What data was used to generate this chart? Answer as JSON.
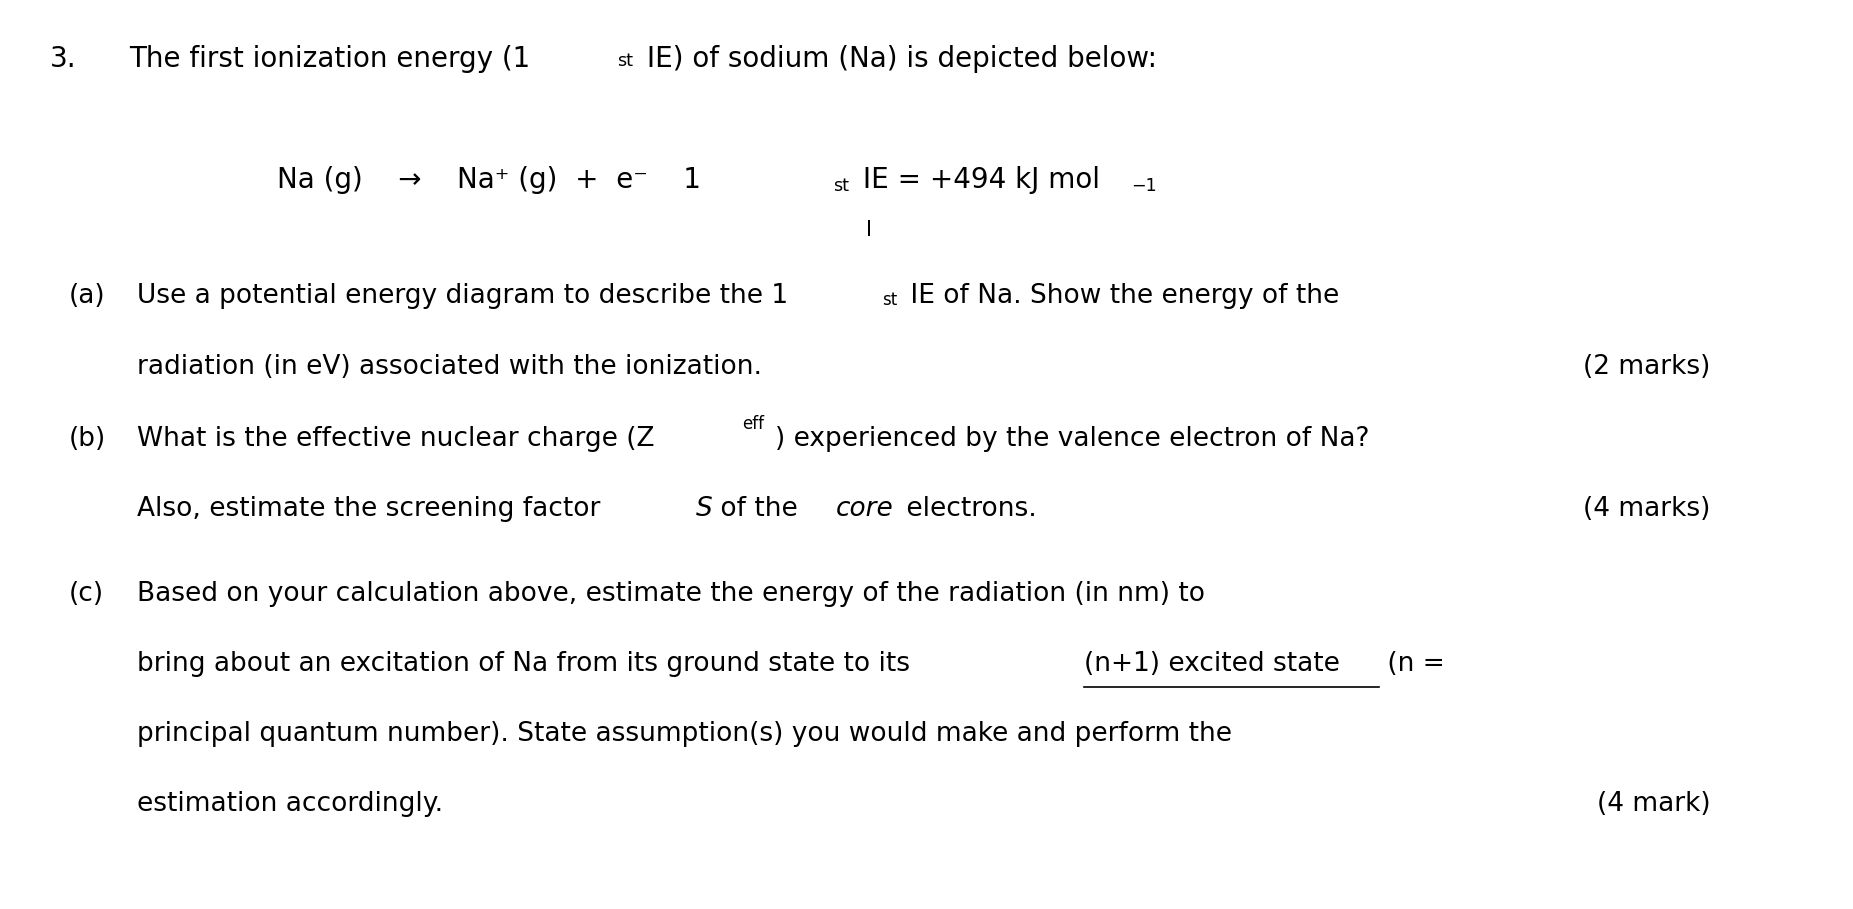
{
  "background_color": "#ffffff",
  "fig_width": 18.53,
  "fig_height": 9.09,
  "question_number": "3.",
  "title_seg1": "The first ionization energy (1",
  "title_st": "st",
  "title_seg2": " IE) of sodium (Na) is depicted below:",
  "eq_seg1": "Na (g)    →    Na⁺ (g)  +  e⁻    1",
  "eq_st": "st",
  "eq_seg2": " IE = +494 kJ mol",
  "eq_sup": "−1",
  "eq_cursor": "I",
  "part_a_label": "(a)",
  "part_a_seg1": "Use a potential energy diagram to describe the 1",
  "part_a_st": "st",
  "part_a_seg2": " IE of Na. Show the energy of the",
  "part_a_line2": "radiation (in eV) associated with the ionization.",
  "part_a_marks": "(2 marks)",
  "part_b_label": "(b)",
  "part_b_seg1": "What is the effective nuclear charge (Z",
  "part_b_eff": "eff",
  "part_b_seg2": ") experienced by the valence electron of Na?",
  "part_b_line2a": "Also, estimate the screening factor ",
  "part_b_S": "S",
  "part_b_line2b": " of the ",
  "part_b_core": "core",
  "part_b_line2c": " electrons.",
  "part_b_marks": "(4 marks)",
  "part_c_label": "(c)",
  "part_c_line1": "Based on your calculation above, estimate the energy of the radiation (in nm) to",
  "part_c_line2a": "bring about an excitation of Na from its ground state to its ",
  "part_c_underline": "(n+1) excited state",
  "part_c_line2b": " (n =",
  "part_c_line3": "principal quantum number). State assumption(s) you would make and perform the",
  "part_c_line4": "estimation accordingly.",
  "part_c_marks": "(4 mark)",
  "font_size_title": 20,
  "font_size_body": 19,
  "font_size_eq": 20,
  "text_color": "#000000"
}
